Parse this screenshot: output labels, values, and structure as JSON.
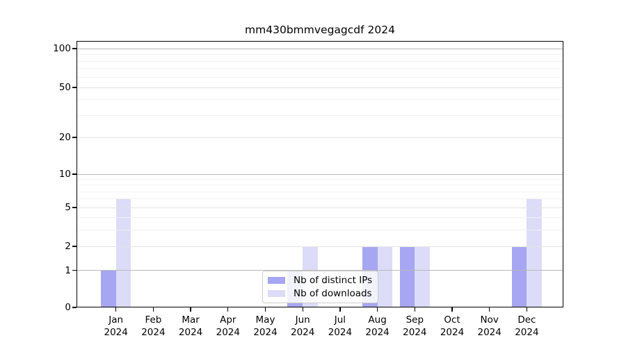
{
  "title": "mm430bmmvegagcdf 2024",
  "chart_data": {
    "type": "bar",
    "title": "mm430bmmvegagcdf 2024",
    "categories": [
      "Jan",
      "Feb",
      "Mar",
      "Apr",
      "May",
      "Jun",
      "Jul",
      "Aug",
      "Sep",
      "Oct",
      "Nov",
      "Dec"
    ],
    "category_year": "2024",
    "series": [
      {
        "name": "Nb of distinct IPs",
        "color": "#a6a6f2",
        "values": [
          1,
          0,
          0,
          0,
          0,
          1,
          0,
          2,
          2,
          0,
          0,
          2
        ]
      },
      {
        "name": "Nb of downloads",
        "color": "#dcdcf8",
        "values": [
          6,
          0,
          0,
          0,
          0,
          2,
          0,
          2,
          2,
          0,
          0,
          6
        ]
      }
    ],
    "xlabel": "",
    "ylabel": "",
    "yticks": [
      0,
      1,
      2,
      5,
      10,
      20,
      50,
      100
    ],
    "ylim": [
      0,
      115
    ],
    "scale": "log1p",
    "grid": true,
    "legend_position": "lower center",
    "gridlines": {
      "decade": [
        1,
        10,
        100
      ],
      "labeled": [
        2,
        5,
        20,
        50
      ],
      "minor": [
        3,
        4,
        6,
        7,
        8,
        9,
        30,
        40,
        60,
        70,
        80,
        90
      ]
    },
    "colors": {
      "spine": "#000000",
      "grid_decade": "#b9b9b9",
      "grid_labeled": "#e4e4e4",
      "grid_minor": "#f1f1f1",
      "tick_text": "#000000",
      "legend_border": "#cccccc"
    }
  }
}
